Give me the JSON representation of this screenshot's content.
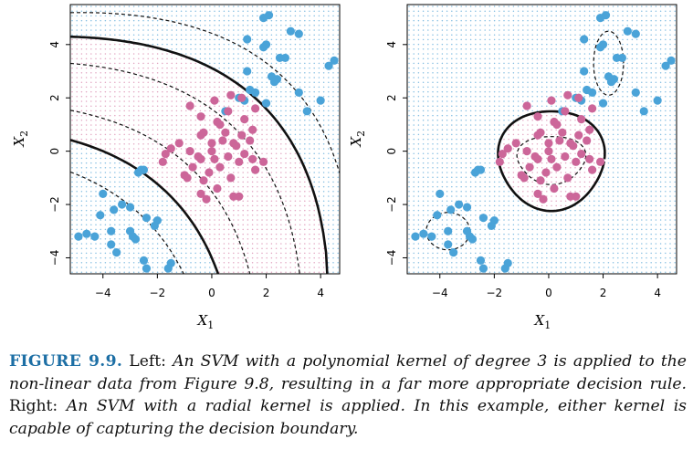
{
  "colors": {
    "blue": "#4aa3d8",
    "pink": "#cc6699",
    "gridBlue": "#86bfe2",
    "gridPink": "#e2a6c2",
    "boundary": "#111111"
  },
  "caption": {
    "label": "FIGURE 9.9.",
    "segments": [
      {
        "text": " Left: ",
        "italic": false
      },
      {
        "text": "An SVM with a polynomial kernel of degree 3 is applied to the non-linear data from Figure 9.8, resulting in a far more appropriate decision rule.",
        "italic": true
      },
      {
        "text": " Right: ",
        "italic": false
      },
      {
        "text": "An SVM with a radial kernel is applied. In this example, either kernel is capable of capturing the decision boundary.",
        "italic": true
      }
    ]
  },
  "chart_data": [
    {
      "type": "scatter",
      "panel": "left",
      "title": "",
      "kernel": "polynomial",
      "degree": 3,
      "xlabel": "X1",
      "ylabel": "X2",
      "xlim": [
        -5.2,
        4.7
      ],
      "ylim": [
        -4.6,
        5.5
      ],
      "xticks": [
        -4,
        -2,
        0,
        2,
        4
      ],
      "yticks": [
        -4,
        -2,
        0,
        2,
        4
      ],
      "series": [
        {
          "name": "blue",
          "points": [
            [
              1.9,
              5.0
            ],
            [
              2.1,
              5.1
            ],
            [
              1.9,
              3.9
            ],
            [
              2.0,
              4.0
            ],
            [
              2.9,
              4.5
            ],
            [
              3.2,
              4.4
            ],
            [
              2.5,
              3.5
            ],
            [
              2.7,
              3.5
            ],
            [
              1.3,
              4.2
            ],
            [
              1.3,
              3.0
            ],
            [
              2.2,
              2.8
            ],
            [
              2.3,
              2.6
            ],
            [
              2.4,
              2.7
            ],
            [
              1.6,
              2.2
            ],
            [
              1.4,
              2.3
            ],
            [
              1.0,
              2.0
            ],
            [
              1.2,
              1.9
            ],
            [
              2.0,
              1.8
            ],
            [
              3.2,
              2.2
            ],
            [
              4.0,
              1.9
            ],
            [
              4.3,
              3.2
            ],
            [
              4.5,
              3.4
            ],
            [
              3.5,
              1.5
            ],
            [
              -4.0,
              -1.6
            ],
            [
              -3.3,
              -2.0
            ],
            [
              -3.6,
              -2.2
            ],
            [
              -3.0,
              -2.1
            ],
            [
              -4.1,
              -2.4
            ],
            [
              -2.4,
              -2.5
            ],
            [
              -2.0,
              -2.6
            ],
            [
              -3.7,
              -3.0
            ],
            [
              -4.6,
              -3.1
            ],
            [
              -4.9,
              -3.2
            ],
            [
              -3.0,
              -3.0
            ],
            [
              -2.9,
              -3.2
            ],
            [
              -2.8,
              -3.3
            ],
            [
              -4.3,
              -3.2
            ],
            [
              -3.7,
              -3.5
            ],
            [
              -3.5,
              -3.8
            ],
            [
              -2.5,
              -4.1
            ],
            [
              -2.4,
              -4.4
            ],
            [
              -1.5,
              -4.2
            ],
            [
              -1.6,
              -4.4
            ],
            [
              -2.6,
              -0.7
            ],
            [
              -2.5,
              -0.7
            ],
            [
              -2.7,
              -0.8
            ],
            [
              -2.1,
              -2.8
            ],
            [
              0.5,
              1.5
            ]
          ]
        },
        {
          "name": "pink",
          "points": [
            [
              0.7,
              2.1
            ],
            [
              0.1,
              1.9
            ],
            [
              1.1,
              2.0
            ],
            [
              1.6,
              1.6
            ],
            [
              -0.8,
              1.7
            ],
            [
              -0.4,
              1.3
            ],
            [
              0.2,
              1.1
            ],
            [
              0.6,
              1.5
            ],
            [
              1.2,
              1.2
            ],
            [
              0.3,
              1.0
            ],
            [
              -0.4,
              0.6
            ],
            [
              0.0,
              0.3
            ],
            [
              0.4,
              0.4
            ],
            [
              0.8,
              0.3
            ],
            [
              1.1,
              0.6
            ],
            [
              1.4,
              0.4
            ],
            [
              -1.2,
              0.3
            ],
            [
              -0.8,
              0.0
            ],
            [
              -0.5,
              -0.2
            ],
            [
              0.1,
              -0.3
            ],
            [
              0.6,
              -0.2
            ],
            [
              1.0,
              -0.4
            ],
            [
              1.5,
              -0.3
            ],
            [
              -0.7,
              -0.6
            ],
            [
              -1.0,
              -0.9
            ],
            [
              -0.3,
              -1.1
            ],
            [
              0.2,
              -1.4
            ],
            [
              0.8,
              -1.7
            ],
            [
              1.0,
              -1.7
            ],
            [
              -0.4,
              -1.6
            ],
            [
              -0.2,
              -1.8
            ],
            [
              -1.5,
              0.1
            ],
            [
              -1.7,
              -0.1
            ],
            [
              -1.8,
              -0.4
            ],
            [
              1.9,
              -0.4
            ],
            [
              1.6,
              -0.7
            ],
            [
              -0.3,
              0.7
            ],
            [
              0.5,
              0.7
            ],
            [
              1.2,
              -0.1
            ],
            [
              -0.1,
              -0.8
            ],
            [
              0.3,
              -0.6
            ],
            [
              -0.9,
              -1.0
            ],
            [
              0.7,
              -1.0
            ],
            [
              1.5,
              0.8
            ],
            [
              0.0,
              0.0
            ],
            [
              -0.4,
              -0.3
            ],
            [
              0.9,
              0.2
            ]
          ]
        }
      ],
      "decision_boundary": "solid curves",
      "margins": "dashed curves"
    },
    {
      "type": "scatter",
      "panel": "right",
      "title": "",
      "kernel": "radial",
      "xlabel": "X1",
      "ylabel": "X2",
      "xlim": [
        -5.2,
        4.7
      ],
      "ylim": [
        -4.6,
        5.5
      ],
      "xticks": [
        -4,
        -2,
        0,
        2,
        4
      ],
      "yticks": [
        -4,
        -2,
        0,
        2,
        4
      ],
      "series": "same points as left panel",
      "decision_boundary": "solid closed curve around pink class",
      "margins": "dashed curves"
    }
  ]
}
